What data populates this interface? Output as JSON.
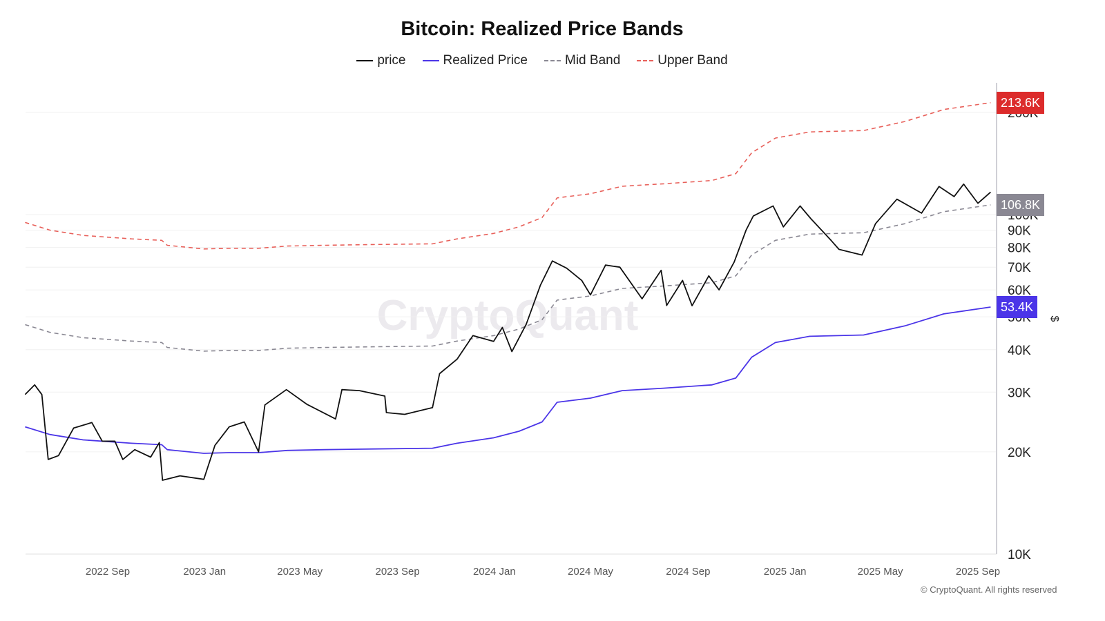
{
  "chart_data": {
    "type": "line",
    "title": "Bitcoin: Realized Price Bands",
    "y_scale": "log",
    "ylim": [
      10000,
      220000
    ],
    "y_unit_label": "$",
    "y_ticks": [
      {
        "value": 10000,
        "label": "10K"
      },
      {
        "value": 20000,
        "label": "20K"
      },
      {
        "value": 30000,
        "label": "30K"
      },
      {
        "value": 40000,
        "label": "40K"
      },
      {
        "value": 50000,
        "label": "50K"
      },
      {
        "value": 60000,
        "label": "60K"
      },
      {
        "value": 70000,
        "label": "70K"
      },
      {
        "value": 80000,
        "label": "80K"
      },
      {
        "value": 90000,
        "label": "90K"
      },
      {
        "value": 100000,
        "label": "100K"
      },
      {
        "value": 200000,
        "label": "200K"
      }
    ],
    "x_ticks": [
      {
        "date": "2022-09-01",
        "label": "2022 Sep"
      },
      {
        "date": "2023-01-01",
        "label": "2023 Jan"
      },
      {
        "date": "2023-05-01",
        "label": "2023 May"
      },
      {
        "date": "2023-09-01",
        "label": "2023 Sep"
      },
      {
        "date": "2024-01-01",
        "label": "2024 Jan"
      },
      {
        "date": "2024-05-01",
        "label": "2024 May"
      },
      {
        "date": "2024-09-01",
        "label": "2024 Sep"
      },
      {
        "date": "2025-01-01",
        "label": "2025 Jan"
      },
      {
        "date": "2025-05-01",
        "label": "2025 May"
      },
      {
        "date": "2025-09-01",
        "label": "2025 Sep"
      }
    ],
    "xlim": [
      "2022-05-20",
      "2025-09-18"
    ],
    "grid": true,
    "legend_position": "top",
    "series": [
      {
        "name": "price",
        "color": "#111111",
        "dash": false,
        "x": [
          "2022-05-20",
          "2022-06-01",
          "2022-06-10",
          "2022-06-18",
          "2022-07-01",
          "2022-07-20",
          "2022-08-12",
          "2022-08-25",
          "2022-09-10",
          "2022-09-20",
          "2022-10-05",
          "2022-10-25",
          "2022-11-05",
          "2022-11-09",
          "2022-12-01",
          "2022-12-31",
          "2023-01-14",
          "2023-02-01",
          "2023-02-20",
          "2023-03-10",
          "2023-03-18",
          "2023-04-14",
          "2023-05-10",
          "2023-06-15",
          "2023-06-23",
          "2023-07-15",
          "2023-08-16",
          "2023-08-18",
          "2023-09-10",
          "2023-10-15",
          "2023-10-24",
          "2023-11-15",
          "2023-12-05",
          "2023-12-31",
          "2024-01-11",
          "2024-01-23",
          "2024-02-10",
          "2024-02-28",
          "2024-03-14",
          "2024-04-01",
          "2024-04-20",
          "2024-05-01",
          "2024-05-20",
          "2024-06-07",
          "2024-07-05",
          "2024-07-29",
          "2024-08-05",
          "2024-08-25",
          "2024-09-06",
          "2024-09-27",
          "2024-10-10",
          "2024-10-29",
          "2024-11-13",
          "2024-11-22",
          "2024-12-17",
          "2024-12-30",
          "2025-01-20",
          "2025-02-03",
          "2025-02-28",
          "2025-03-10",
          "2025-04-08",
          "2025-04-25",
          "2025-05-22",
          "2025-06-22",
          "2025-07-14",
          "2025-08-02",
          "2025-08-14",
          "2025-09-01",
          "2025-09-17"
        ],
        "values": [
          29500,
          31500,
          29500,
          19000,
          19500,
          23500,
          24400,
          21500,
          21500,
          19000,
          20300,
          19300,
          21300,
          16500,
          17000,
          16600,
          20900,
          23700,
          24500,
          20000,
          27500,
          30500,
          27600,
          25000,
          30500,
          30300,
          29200,
          26100,
          25800,
          27000,
          34000,
          37500,
          44000,
          42300,
          46500,
          39500,
          47500,
          62000,
          73000,
          69500,
          64000,
          58000,
          71000,
          70000,
          56500,
          68500,
          54000,
          64000,
          53900,
          66000,
          60000,
          72500,
          90000,
          99000,
          106000,
          92000,
          106000,
          97000,
          84000,
          79000,
          76000,
          94000,
          111000,
          101000,
          121000,
          113000,
          123000,
          108000,
          116500
        ]
      },
      {
        "name": "Realized Price",
        "color": "#4b35e8",
        "dash": false,
        "last_label": "53.4K",
        "x": [
          "2022-05-20",
          "2022-06-20",
          "2022-08-01",
          "2022-10-01",
          "2022-11-08",
          "2022-11-15",
          "2022-12-31",
          "2023-02-01",
          "2023-03-10",
          "2023-04-15",
          "2023-06-01",
          "2023-08-01",
          "2023-10-15",
          "2023-11-15",
          "2023-12-31",
          "2024-02-01",
          "2024-03-01",
          "2024-03-20",
          "2024-05-01",
          "2024-06-10",
          "2024-08-01",
          "2024-10-01",
          "2024-10-31",
          "2024-11-20",
          "2024-12-20",
          "2025-02-01",
          "2025-04-10",
          "2025-06-01",
          "2025-07-20",
          "2025-09-17"
        ],
        "values": [
          23700,
          22500,
          21700,
          21200,
          21000,
          20300,
          19800,
          19900,
          19900,
          20200,
          20300,
          20400,
          20500,
          21200,
          22000,
          23000,
          24500,
          28000,
          28800,
          30300,
          30800,
          31500,
          33000,
          38000,
          42000,
          43800,
          44200,
          47000,
          51000,
          53400
        ]
      },
      {
        "name": "Mid Band",
        "color": "#8a8893",
        "dash": true,
        "last_label": "106.8K",
        "x": [
          "2022-05-20",
          "2022-06-20",
          "2022-08-01",
          "2022-10-01",
          "2022-11-08",
          "2022-11-15",
          "2022-12-31",
          "2023-02-01",
          "2023-03-10",
          "2023-04-15",
          "2023-06-01",
          "2023-08-01",
          "2023-10-15",
          "2023-11-15",
          "2023-12-31",
          "2024-02-01",
          "2024-03-01",
          "2024-03-20",
          "2024-05-01",
          "2024-06-10",
          "2024-08-01",
          "2024-10-01",
          "2024-10-31",
          "2024-11-20",
          "2024-12-20",
          "2025-02-01",
          "2025-04-10",
          "2025-06-01",
          "2025-07-20",
          "2025-09-17"
        ],
        "values": [
          47400,
          45000,
          43400,
          42400,
          42000,
          40600,
          39600,
          39800,
          39800,
          40400,
          40600,
          40800,
          41000,
          42400,
          44000,
          46000,
          49000,
          56000,
          57600,
          60600,
          61600,
          63000,
          66000,
          76000,
          84000,
          87600,
          88400,
          94000,
          102000,
          106800
        ]
      },
      {
        "name": "Upper Band",
        "color": "#e8605a",
        "dash": true,
        "last_label": "213.6K",
        "x": [
          "2022-05-20",
          "2022-06-20",
          "2022-08-01",
          "2022-10-01",
          "2022-11-08",
          "2022-11-15",
          "2022-12-31",
          "2023-02-01",
          "2023-03-10",
          "2023-04-15",
          "2023-06-01",
          "2023-08-01",
          "2023-10-15",
          "2023-11-15",
          "2023-12-31",
          "2024-02-01",
          "2024-03-01",
          "2024-03-20",
          "2024-05-01",
          "2024-06-10",
          "2024-08-01",
          "2024-10-01",
          "2024-10-31",
          "2024-11-20",
          "2024-12-20",
          "2025-02-01",
          "2025-04-10",
          "2025-06-01",
          "2025-07-20",
          "2025-09-17"
        ],
        "values": [
          94800,
          90000,
          86800,
          84800,
          84000,
          81200,
          79200,
          79600,
          79600,
          80800,
          81200,
          81600,
          82000,
          84800,
          88000,
          92000,
          98000,
          112000,
          115200,
          121200,
          123200,
          126000,
          132000,
          152000,
          168000,
          175200,
          176800,
          188000,
          204000,
          213600
        ]
      }
    ],
    "tag_colors": {
      "Realized Price": "#4b35e8",
      "Mid Band": "#8a8893",
      "Upper Band": "#dc2b2b"
    }
  },
  "watermark": "CryptoQuant",
  "copyright": "© CryptoQuant. All rights reserved"
}
